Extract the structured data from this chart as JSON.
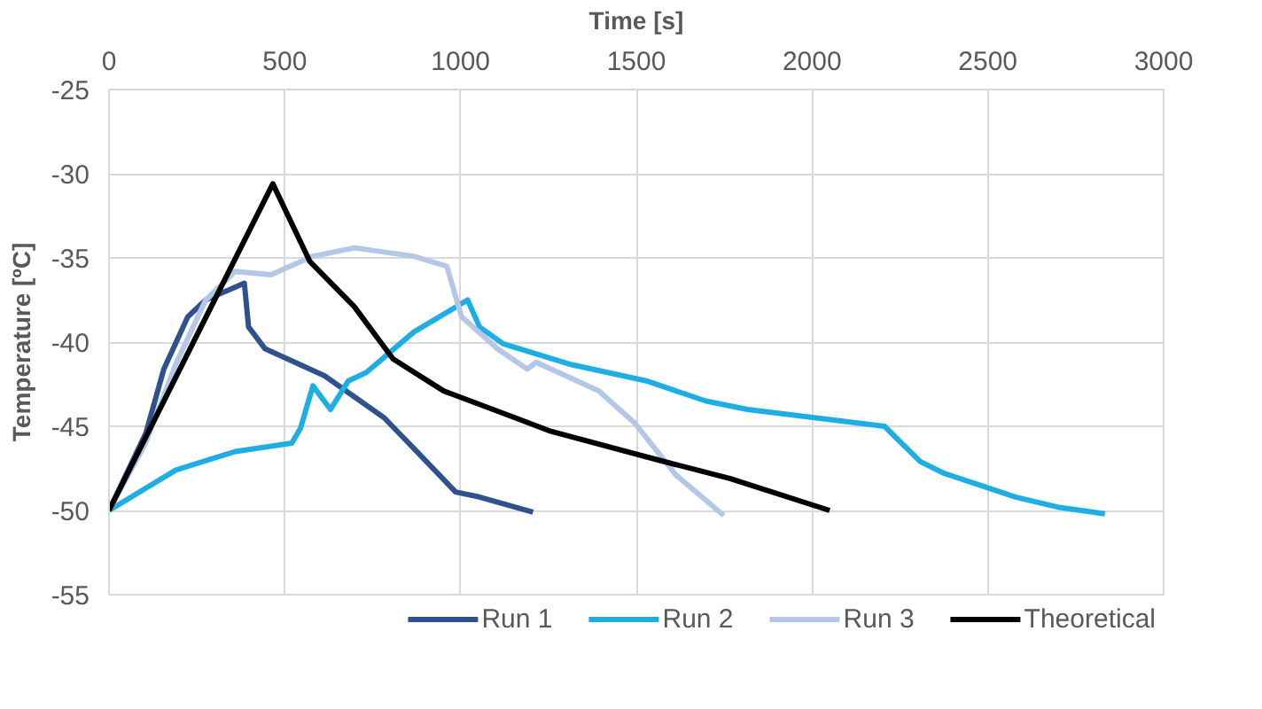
{
  "chart_data": {
    "type": "line",
    "xlabel": "Time [s]",
    "ylabel": "Temperature [ºC]",
    "xlim": [
      0,
      3000
    ],
    "ylim": [
      -55,
      -25
    ],
    "xticks": [
      0,
      500,
      1000,
      1500,
      2000,
      2500,
      3000
    ],
    "yticks": [
      -55,
      -50,
      -45,
      -40,
      -35,
      -30,
      -25
    ],
    "grid": true,
    "legend": "bottom",
    "marker": "none",
    "line_style": "solid",
    "series": [
      {
        "name": "Run 1",
        "color": "#2f528f",
        "x": [
          0,
          105,
          156,
          224,
          275,
          385,
          397,
          444,
          613,
          783,
          885,
          986,
          1054,
          1206
        ],
        "values": [
          -50,
          -45.4,
          -41.6,
          -38.5,
          -37.5,
          -36.5,
          -39.1,
          -40.4,
          -42.0,
          -44.5,
          -46.7,
          -48.9,
          -49.2,
          -50.1
        ]
      },
      {
        "name": "Run 2",
        "color": "#1eaee3",
        "x": [
          0,
          190,
          359,
          520,
          545,
          580,
          630,
          681,
          732,
          867,
          1020,
          1054,
          1121,
          1308,
          1528,
          1698,
          1816,
          2206,
          2308,
          2376,
          2579,
          2698,
          2833
        ],
        "values": [
          -50,
          -47.6,
          -46.5,
          -46.0,
          -45.1,
          -42.6,
          -44.0,
          -42.3,
          -41.8,
          -39.4,
          -37.5,
          -39.1,
          -40.1,
          -41.3,
          -42.3,
          -43.5,
          -44.0,
          -45.0,
          -47.1,
          -47.8,
          -49.2,
          -49.8,
          -50.2
        ]
      },
      {
        "name": "Run 3",
        "color": "#b4c7e7",
        "x": [
          0,
          104,
          190,
          275,
          359,
          461,
          580,
          698,
          867,
          961,
          968,
          1003,
          1105,
          1190,
          1215,
          1393,
          1495,
          1613,
          1749
        ],
        "values": [
          -50,
          -46,
          -41.3,
          -37.5,
          -35.8,
          -36.0,
          -34.9,
          -34.4,
          -34.9,
          -35.5,
          -36,
          -38.5,
          -40.4,
          -41.6,
          -41.2,
          -42.9,
          -44.8,
          -47.9,
          -50.3
        ]
      },
      {
        "name": "Theoretical",
        "color": "#000000",
        "x": [
          0,
          466,
          571,
          698,
          808,
          952,
          1156,
          1257,
          1562,
          1766,
          2050
        ],
        "values": [
          -50,
          -30.6,
          -35.2,
          -37.9,
          -41.0,
          -42.9,
          -44.5,
          -45.3,
          -47.0,
          -48.1,
          -50.0
        ]
      }
    ]
  }
}
